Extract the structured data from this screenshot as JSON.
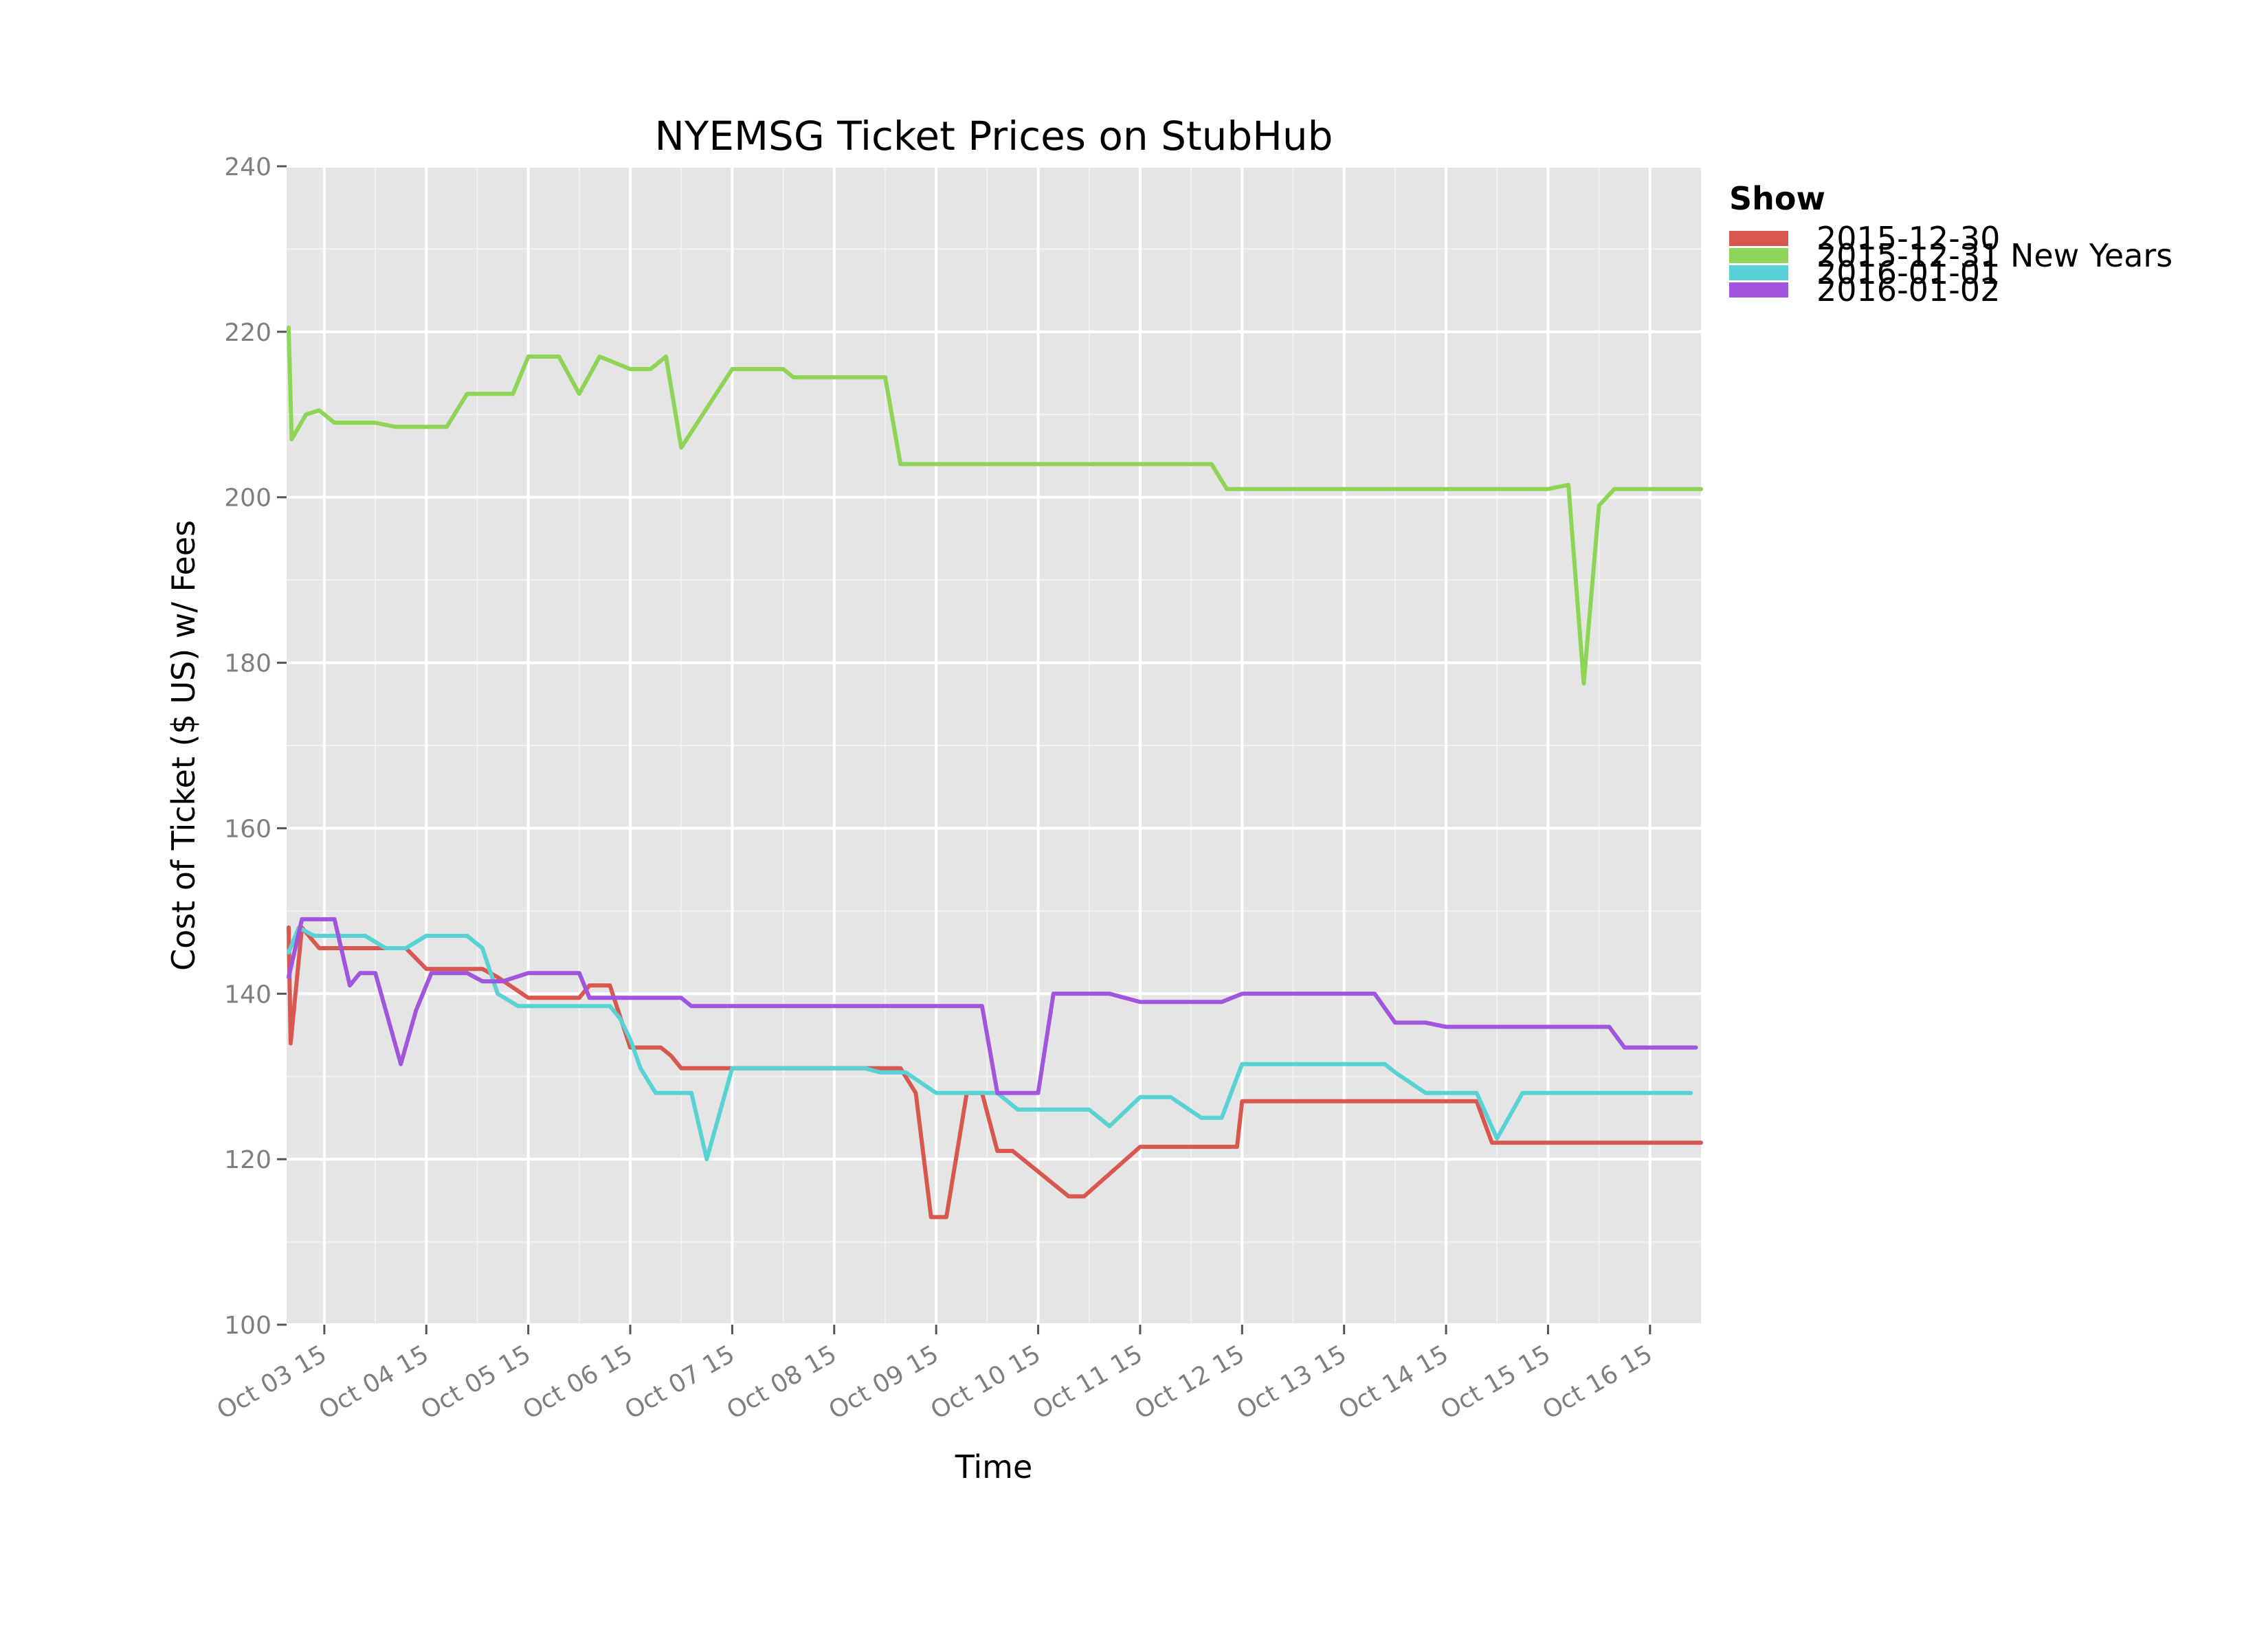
{
  "chart_data": {
    "type": "line",
    "title": "NYEMSG Ticket Prices on StubHub",
    "xlabel": "Time",
    "ylabel": "Cost of Ticket ($ US) w/ Fees",
    "ylim": [
      100,
      240
    ],
    "xlim": [
      -0.37,
      13.5
    ],
    "y_ticks": [
      100,
      120,
      140,
      160,
      180,
      200,
      220,
      240
    ],
    "y_tick_labels": [
      "100",
      "120",
      "140",
      "160",
      "180",
      "200",
      "220",
      "240"
    ],
    "x_ticks": [
      0,
      1,
      2,
      3,
      4,
      5,
      6,
      7,
      8,
      9,
      10,
      11,
      12,
      13
    ],
    "x_tick_labels": [
      "Oct 03 15",
      "Oct 04 15",
      "Oct 05 15",
      "Oct 06 15",
      "Oct 07 15",
      "Oct 08 15",
      "Oct 09 15",
      "Oct 10 15",
      "Oct 11 15",
      "Oct 12 15",
      "Oct 13 15",
      "Oct 14 15",
      "Oct 15 15",
      "Oct 16 15"
    ],
    "grid": true,
    "legend": {
      "title": "Show",
      "position": "right"
    },
    "series": [
      {
        "name": "2015-12-30",
        "color": "#d8584f",
        "x": [
          -0.35,
          -0.33,
          -0.22,
          -0.05,
          0.1,
          0.5,
          0.8,
          1.0,
          1.55,
          1.7,
          2.0,
          2.5,
          2.6,
          2.8,
          3.0,
          3.3,
          3.4,
          3.5,
          4.0,
          5.0,
          5.5,
          5.65,
          5.8,
          5.95,
          6.1,
          6.3,
          6.45,
          6.6,
          6.75,
          7.3,
          7.45,
          8.0,
          8.8,
          8.95,
          9.0,
          10.3,
          10.45,
          11.3,
          11.45,
          12.0,
          13.0,
          13.5
        ],
        "values": [
          148,
          134,
          148,
          145.5,
          145.5,
          145.5,
          145.5,
          143,
          143,
          142,
          139.5,
          139.5,
          141,
          141,
          133.5,
          133.5,
          132.5,
          131,
          131,
          131,
          131,
          131,
          128,
          113,
          113,
          128,
          128,
          121,
          121,
          115.5,
          115.5,
          121.5,
          121.5,
          121.5,
          127,
          127,
          127,
          127,
          122,
          122,
          122,
          122
        ]
      },
      {
        "name": "2015-12-31 New Years",
        "color": "#8ed557",
        "x": [
          -0.35,
          -0.32,
          -0.18,
          -0.05,
          0.1,
          0.5,
          0.7,
          1.0,
          1.2,
          1.4,
          1.55,
          1.85,
          2.0,
          2.3,
          2.5,
          2.7,
          3.0,
          3.2,
          3.35,
          3.5,
          4.0,
          4.5,
          4.6,
          5.0,
          5.5,
          5.65,
          6.0,
          7.0,
          8.0,
          8.7,
          8.85,
          9.0,
          10.0,
          11.0,
          12.0,
          12.2,
          12.35,
          12.5,
          12.65,
          13.0,
          13.5
        ],
        "values": [
          220.5,
          207,
          210,
          210.5,
          209,
          209,
          208.5,
          208.5,
          208.5,
          212.5,
          212.5,
          212.5,
          217,
          217,
          212.5,
          217,
          215.5,
          215.5,
          217,
          206,
          215.5,
          215.5,
          214.5,
          214.5,
          214.5,
          204,
          204,
          204,
          204,
          204,
          201,
          201,
          201,
          201,
          201,
          201.5,
          177.5,
          199,
          201,
          201,
          201
        ]
      },
      {
        "name": "2016-01-01",
        "color": "#59d2d6",
        "x": [
          -0.35,
          -0.25,
          -0.1,
          0.0,
          0.4,
          0.6,
          0.8,
          1.0,
          1.4,
          1.55,
          1.7,
          1.9,
          2.0,
          2.4,
          2.8,
          2.9,
          3.0,
          3.1,
          3.25,
          3.5,
          3.6,
          3.75,
          4.0,
          5.0,
          5.3,
          5.45,
          5.7,
          6.0,
          6.3,
          6.6,
          6.8,
          7.3,
          7.5,
          7.7,
          8.0,
          8.3,
          8.6,
          8.8,
          9.0,
          10.4,
          10.5,
          10.8,
          11.0,
          11.3,
          11.5,
          11.75,
          12.0,
          13.0,
          13.4
        ],
        "values": [
          145,
          148,
          147,
          147,
          147,
          145.5,
          145.5,
          147,
          147,
          145.5,
          140,
          138.5,
          138.5,
          138.5,
          138.5,
          137,
          134.5,
          131,
          128,
          128,
          128,
          120,
          131,
          131,
          131,
          130.5,
          130.5,
          128,
          128,
          128,
          126,
          126,
          126,
          124,
          127.5,
          127.5,
          125,
          125,
          131.5,
          131.5,
          130.5,
          128,
          128,
          128,
          122.5,
          128,
          128,
          128,
          128
        ]
      },
      {
        "name": "2016-01-02",
        "color": "#a154dd",
        "x": [
          -0.35,
          -0.22,
          -0.05,
          0.1,
          0.25,
          0.35,
          0.5,
          0.75,
          0.9,
          1.05,
          1.4,
          1.55,
          1.75,
          2.0,
          2.5,
          2.6,
          3.0,
          3.5,
          3.6,
          3.75,
          4.0,
          5.0,
          6.0,
          6.45,
          6.6,
          7.0,
          7.15,
          7.5,
          7.7,
          8.0,
          8.8,
          9.0,
          10.0,
          10.3,
          10.5,
          10.8,
          11.0,
          12.0,
          12.6,
          12.75,
          13.0,
          13.45
        ],
        "values": [
          142,
          149,
          149,
          149,
          141,
          142.5,
          142.5,
          131.5,
          138,
          142.5,
          142.5,
          141.5,
          141.5,
          142.5,
          142.5,
          139.5,
          139.5,
          139.5,
          138.5,
          138.5,
          138.5,
          138.5,
          138.5,
          138.5,
          128,
          128,
          140,
          140,
          140,
          139,
          139,
          140,
          140,
          140,
          136.5,
          136.5,
          136,
          136,
          136,
          133.5,
          133.5,
          133.5
        ]
      }
    ]
  }
}
